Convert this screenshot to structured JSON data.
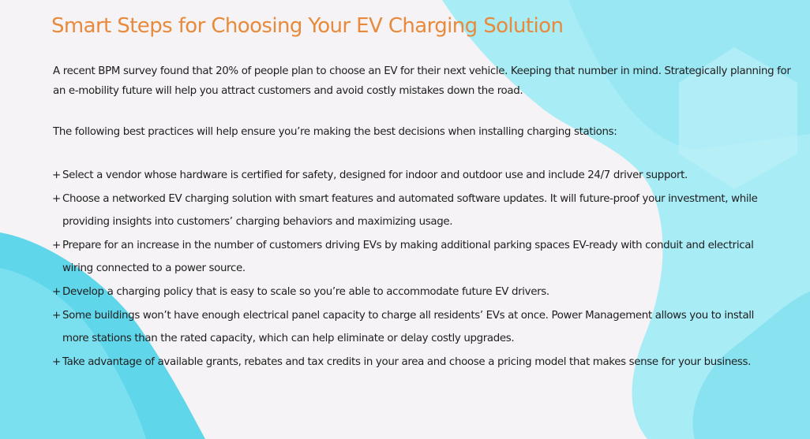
{
  "colors": {
    "title": "#e88a3c",
    "text": "#1e1e1e",
    "page_bg": "#f5f3f5",
    "cyan_light": "#a8ecf6",
    "cyan_mid": "#7fe0ef",
    "cyan_bright": "#5fd6ea"
  },
  "title": "Smart Steps for Choosing Your EV Charging Solution",
  "intro": "A recent BPM survey found that 20% of people plan to choose an EV for their next vehicle. Keeping that number in mind. Strategically planning for an e-mobility future will help you attract customers and avoid costly mistakes down the road.",
  "lead": "The following best practices will help ensure you’re making the best decisions when installing charging stations:",
  "bullet_marker": "+",
  "bullets": [
    "Select a vendor whose hardware is certified for safety, designed for indoor and outdoor use and include 24/7 driver support.",
    "Choose a networked EV charging solution with smart features and automated software updates. It will future-proof your investment, while providing insights into customers’ charging behaviors and maximizing usage.",
    "Prepare for an increase in the number of customers driving EVs by making additional parking spaces EV-ready with conduit and electrical wiring connected to a power source.",
    "Develop a charging policy that is easy to scale so you’re able to accommodate future EV drivers.",
    "Some buildings won’t have enough electrical panel capacity to charge all residents’ EVs at once. Power Management allows you to install more stations than the rated capacity, which can help eliminate or delay costly upgrades.",
    "Take advantage of available grants, rebates and tax credits in your area and choose a pricing model that makes sense for your business."
  ]
}
